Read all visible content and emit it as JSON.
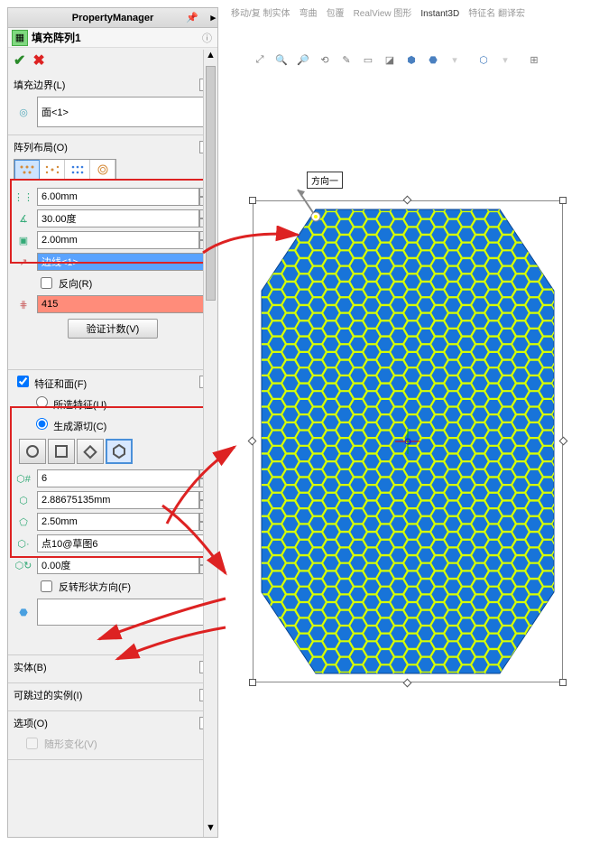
{
  "pm_title": "PropertyManager",
  "feature_name": "填充阵列1",
  "sections": {
    "boundary": {
      "title": "填充边界(L)",
      "face": "面<1>"
    },
    "layout": {
      "title": "阵列布局(O)",
      "spacing": "6.00mm",
      "angle": "30.00度",
      "margin": "2.00mm",
      "edge": "边线<1>",
      "reverse": "反向(R)",
      "count": "415",
      "validate_btn": "验证计数(V)"
    },
    "feat": {
      "title": "特征和面(F)",
      "opt_selected": "所选特征(U)",
      "opt_create": "生成源切(C)",
      "sides": "6",
      "diameter": "2.88675135mm",
      "inner": "2.50mm",
      "vertex": "点10@草图6",
      "rotation": "0.00度",
      "flip": "反转形状方向(F)"
    },
    "bodies": "实体(B)",
    "skip": "可跳过的实例(I)",
    "options": "选项(O)",
    "random": "随形变化(V)"
  },
  "top_tabs": {
    "move": "移动/复\n制实体",
    "curve": "弯曲",
    "wrap": "包覆",
    "realview": "RealView\n图形",
    "instant3d": "Instant3D",
    "translate": "特征名\n翻译宏"
  },
  "dir_label": "方向一",
  "colors": {
    "body": "#1874d9",
    "hex_line": "#d7ff00",
    "hex_out": "#3aa0ff",
    "red": "#d22"
  }
}
